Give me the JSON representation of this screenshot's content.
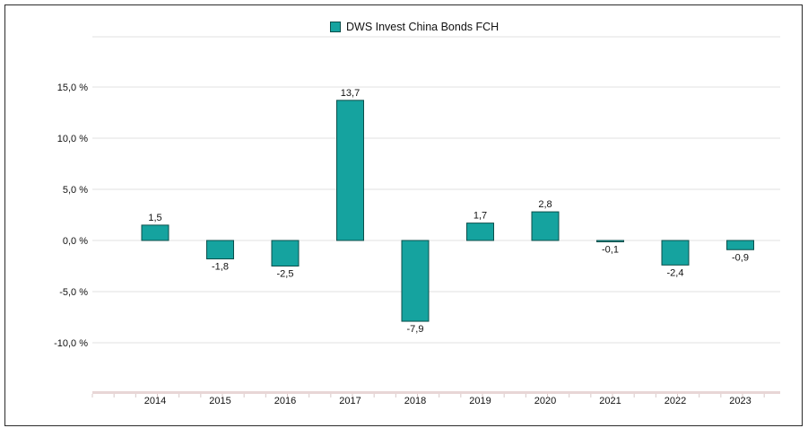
{
  "chart_data": {
    "type": "bar",
    "legend": {
      "position": "top-center",
      "label": "DWS Invest China Bonds FCH"
    },
    "categories": [
      "2014",
      "2015",
      "2016",
      "2017",
      "2018",
      "2019",
      "2020",
      "2021",
      "2022",
      "2023"
    ],
    "series": [
      {
        "name": "DWS Invest China Bonds FCH",
        "values": [
          1.5,
          -1.8,
          -2.5,
          13.7,
          -7.9,
          1.7,
          2.8,
          -0.1,
          -2.4,
          -0.9
        ],
        "value_labels": [
          "1,5",
          "-1,8",
          "-2,5",
          "13,7",
          "-7,9",
          "1,7",
          "2,8",
          "-0,1",
          "-2,4",
          "-0,9"
        ],
        "color": "#15a39f",
        "border_color": "#0c4f4b"
      }
    ],
    "yaxis": {
      "ticks": [
        15,
        10,
        5,
        0,
        -5,
        -10
      ],
      "tick_labels": [
        "15,0 %",
        "10,0 %",
        "5,0 %",
        "0,0 %",
        "-5,0 %",
        "-10,0 %"
      ],
      "ylim": [
        -15,
        20
      ],
      "grid": true
    },
    "xaxis": {
      "tick_labels": [
        "2014",
        "2015",
        "2016",
        "2017",
        "2018",
        "2019",
        "2020",
        "2021",
        "2022",
        "2023"
      ]
    },
    "title": "",
    "xlabel": "",
    "ylabel": ""
  }
}
